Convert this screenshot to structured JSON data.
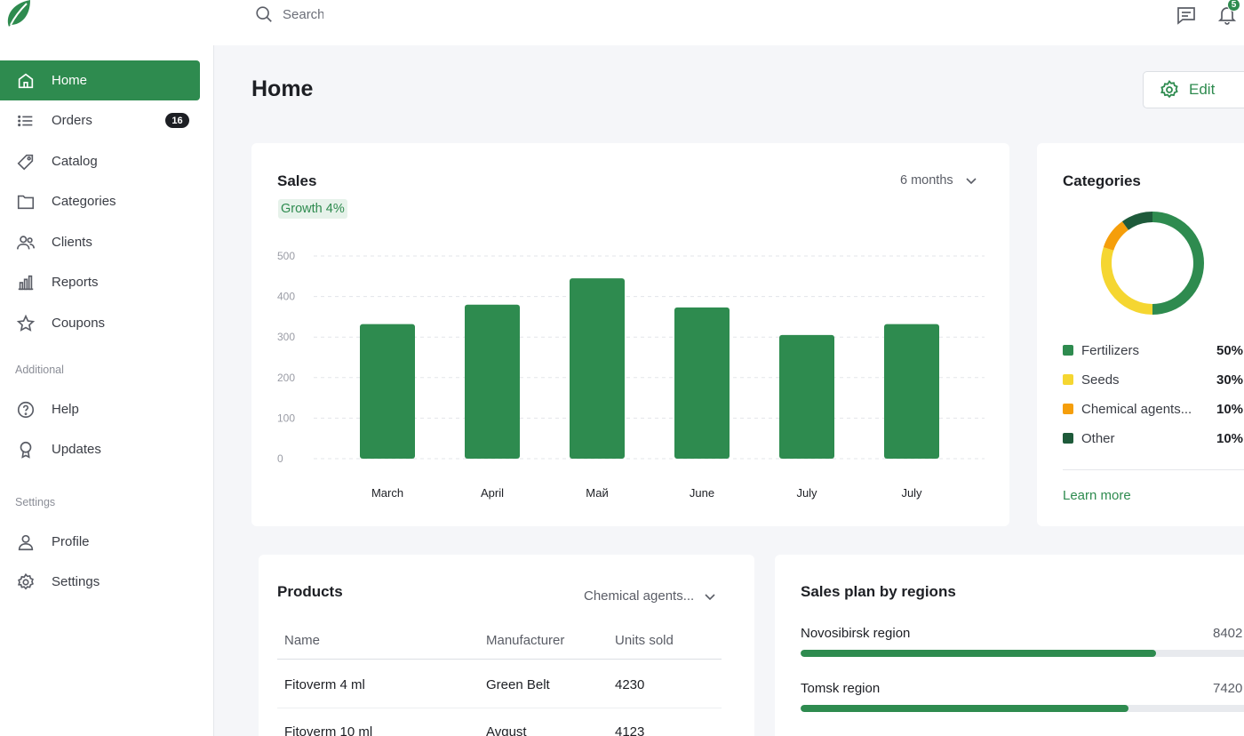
{
  "search": {
    "placeholder": "Search"
  },
  "notifications": {
    "count": "5"
  },
  "sidebar": {
    "items": [
      {
        "label": "Home",
        "active": true,
        "icon": "home-icon"
      },
      {
        "label": "Orders",
        "badge": "16",
        "icon": "list-icon"
      },
      {
        "label": "Catalog",
        "icon": "tag-icon"
      },
      {
        "label": "Categories",
        "icon": "folder-icon"
      },
      {
        "label": "Clients",
        "icon": "users-icon"
      },
      {
        "label": "Reports",
        "icon": "bar-chart-icon"
      },
      {
        "label": "Coupons",
        "icon": "star-icon"
      }
    ],
    "additional_title": "Additional",
    "additional": [
      {
        "label": "Help",
        "icon": "help-icon"
      },
      {
        "label": "Updates",
        "icon": "award-icon"
      }
    ],
    "settings_title": "Settings",
    "settings": [
      {
        "label": "Profile",
        "icon": "user-icon"
      },
      {
        "label": "Settings",
        "icon": "gear-icon"
      }
    ]
  },
  "page": {
    "title": "Home",
    "edit_label": "Edit"
  },
  "sales": {
    "title": "Sales",
    "period": "6 months",
    "growth": "Growth 4%"
  },
  "chart_data": {
    "type": "bar",
    "categories": [
      "March",
      "April",
      "Май",
      "June",
      "July",
      "July"
    ],
    "values": [
      332,
      380,
      445,
      373,
      305,
      332
    ],
    "ylim": [
      0,
      500
    ],
    "yticks": [
      0,
      100,
      200,
      300,
      400,
      500
    ],
    "grid": true,
    "color": "#2e8b4f"
  },
  "categories": {
    "title": "Categories",
    "items": [
      {
        "name": "Fertilizers",
        "pct": "50%",
        "value": 50,
        "color": "#2e8b4f"
      },
      {
        "name": "Seeds",
        "pct": "30%",
        "value": 30,
        "color": "#f5d631"
      },
      {
        "name": "Chemical agents...",
        "pct": "10%",
        "value": 10,
        "color": "#f59e0b"
      },
      {
        "name": "Other",
        "pct": "10%",
        "value": 10,
        "color": "#1e5a3a"
      }
    ],
    "learn_more": "Learn more"
  },
  "products": {
    "title": "Products",
    "filter": "Chemical agents...",
    "columns": [
      "Name",
      "Manufacturer",
      "Units sold"
    ],
    "rows": [
      [
        "Fitoverm 4 ml",
        "Green Belt",
        "4230"
      ],
      [
        "Fitoverm 10 ml",
        "Avgust",
        "4123"
      ]
    ]
  },
  "regions": {
    "title": "Sales plan by regions",
    "items": [
      {
        "name": "Novosibirsk region",
        "value": "8402",
        "progress": 0.77
      },
      {
        "name": "Tomsk region",
        "value": "7420",
        "progress": 0.71
      }
    ]
  }
}
